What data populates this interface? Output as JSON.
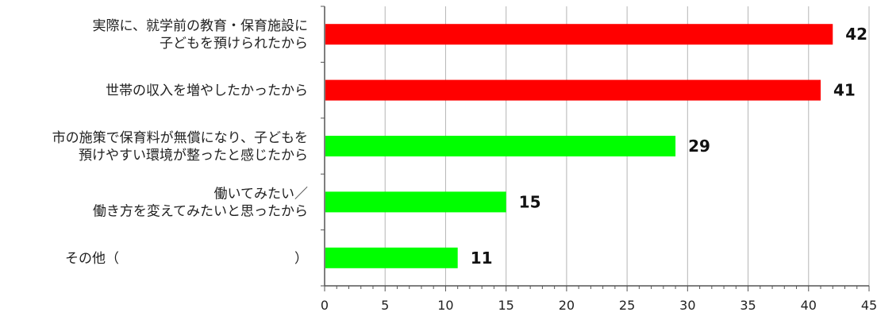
{
  "chart_data": {
    "type": "bar",
    "orientation": "horizontal",
    "categories": [
      [
        "実際に、就学前の教育・保育施設に",
        "子どもを預けられたから"
      ],
      [
        "世帯の収入を増やしたかったから"
      ],
      [
        "市の施策で保育料が無償になり、子どもを",
        "預けやすい環境が整ったと感じたから"
      ],
      [
        "働いてみたい／",
        "働き方を変えてみたいと思ったから"
      ],
      [
        "その他（　　　　　　　　　　　　　）"
      ]
    ],
    "values": [
      42,
      41,
      29,
      15,
      11
    ],
    "bar_colors": [
      "#ff0000",
      "#ff0000",
      "#00ff00",
      "#00ff00",
      "#00ff00"
    ],
    "xlim": [
      0,
      45
    ],
    "xticks": [
      0,
      5,
      10,
      15,
      20,
      25,
      30,
      35,
      40,
      45
    ],
    "grid": true,
    "data_labels": true,
    "title": "",
    "xlabel": "",
    "ylabel": ""
  }
}
